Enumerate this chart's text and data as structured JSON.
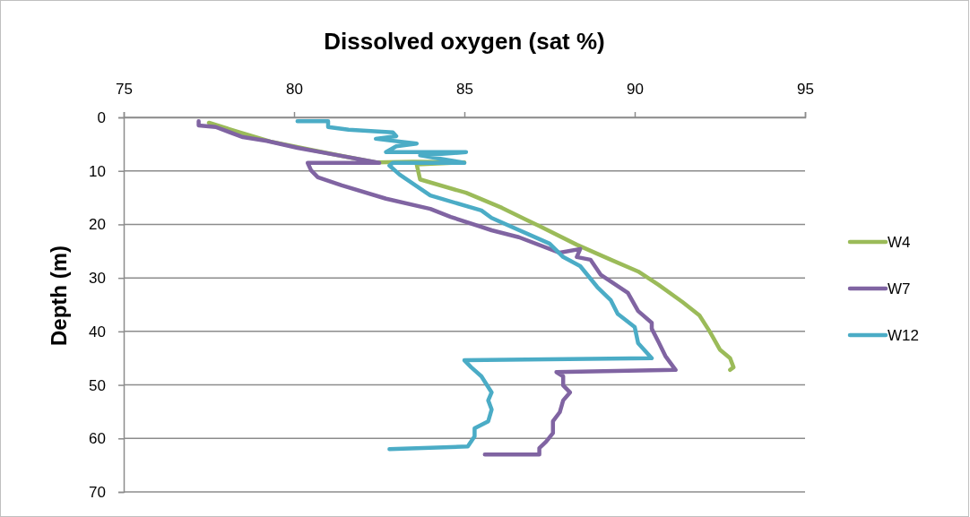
{
  "chart_data": {
    "type": "line",
    "title": "Dissolved oxygen (sat %)",
    "ylabel": "Depth (m)",
    "xlim": [
      75,
      95
    ],
    "xticks": [
      75,
      80,
      85,
      90,
      95
    ],
    "ylim": [
      70,
      0
    ],
    "yticks": [
      0,
      10,
      20,
      30,
      40,
      50,
      60,
      70
    ],
    "grid": "y",
    "legend": "right",
    "line_style": "solid",
    "series": [
      {
        "name": "W4",
        "color": "#9bbb59",
        "x": [
          77.5,
          78.4,
          79.3,
          80.6,
          81.4,
          82.4,
          83.5,
          85.0,
          83.6,
          83.7,
          85.05,
          86.1,
          86.8,
          87.2,
          88.3,
          89.3,
          90.1,
          90.7,
          91.4,
          91.9,
          92.2,
          92.5,
          92.8,
          92.9,
          92.8
        ],
        "values": [
          1.0,
          2.8,
          4.5,
          6.2,
          7.2,
          8.4,
          8.3,
          8.4,
          8.8,
          11.6,
          14.1,
          16.9,
          19.1,
          20.3,
          23.8,
          26.6,
          28.8,
          31.3,
          34.5,
          37.0,
          40.0,
          43.4,
          45.0,
          46.7,
          47.2
        ]
      },
      {
        "name": "W7",
        "color": "#8064a2",
        "x": [
          77.2,
          77.2,
          77.7,
          78.5,
          79.2,
          80.1,
          81.3,
          82.5,
          80.4,
          80.5,
          80.7,
          81.4,
          82.7,
          84.0,
          84.6,
          85.8,
          86.6,
          87.8,
          88.4,
          88.3,
          88.7,
          89.0,
          89.8,
          90.1,
          90.5,
          90.5,
          90.7,
          90.9,
          91.2,
          87.7,
          87.9,
          87.9,
          88.1,
          87.9,
          87.8,
          87.6,
          87.6,
          87.4,
          87.2,
          87.2,
          85.6
        ],
        "values": [
          0.7,
          1.5,
          1.8,
          3.7,
          4.4,
          5.7,
          7.1,
          8.5,
          8.5,
          9.9,
          11.2,
          12.7,
          15.2,
          17.1,
          18.6,
          21.1,
          22.4,
          25.3,
          24.6,
          26.1,
          26.6,
          29.4,
          32.8,
          36.2,
          38.4,
          39.5,
          42.0,
          44.6,
          47.2,
          47.6,
          48.4,
          50.1,
          51.4,
          52.9,
          55.1,
          56.8,
          59.0,
          60.6,
          61.8,
          63.0,
          63.0
        ]
      },
      {
        "name": "W12",
        "color": "#4bacc6",
        "x": [
          80.1,
          81.0,
          81.0,
          81.6,
          82.9,
          83.0,
          82.4,
          83.6,
          83.0,
          82.7,
          85.05,
          83.7,
          85.0,
          82.9,
          82.8,
          83.1,
          84.0,
          85.5,
          85.8,
          87.5,
          87.9,
          88.4,
          88.9,
          89.3,
          89.5,
          90.0,
          90.1,
          90.5,
          85.0,
          85.2,
          85.5,
          85.8,
          85.7,
          85.8,
          85.7,
          85.3,
          85.3,
          85.1,
          82.8
        ],
        "values": [
          0.7,
          0.7,
          1.8,
          2.3,
          2.8,
          3.5,
          4.0,
          4.9,
          5.4,
          6.5,
          6.5,
          7.1,
          8.5,
          8.5,
          9.0,
          10.7,
          14.6,
          17.4,
          18.8,
          23.6,
          26.1,
          27.8,
          31.7,
          34.2,
          36.7,
          39.2,
          42.2,
          45.0,
          45.4,
          46.7,
          48.4,
          51.4,
          52.9,
          54.6,
          56.8,
          58.1,
          59.6,
          61.5,
          62.0
        ]
      }
    ]
  }
}
